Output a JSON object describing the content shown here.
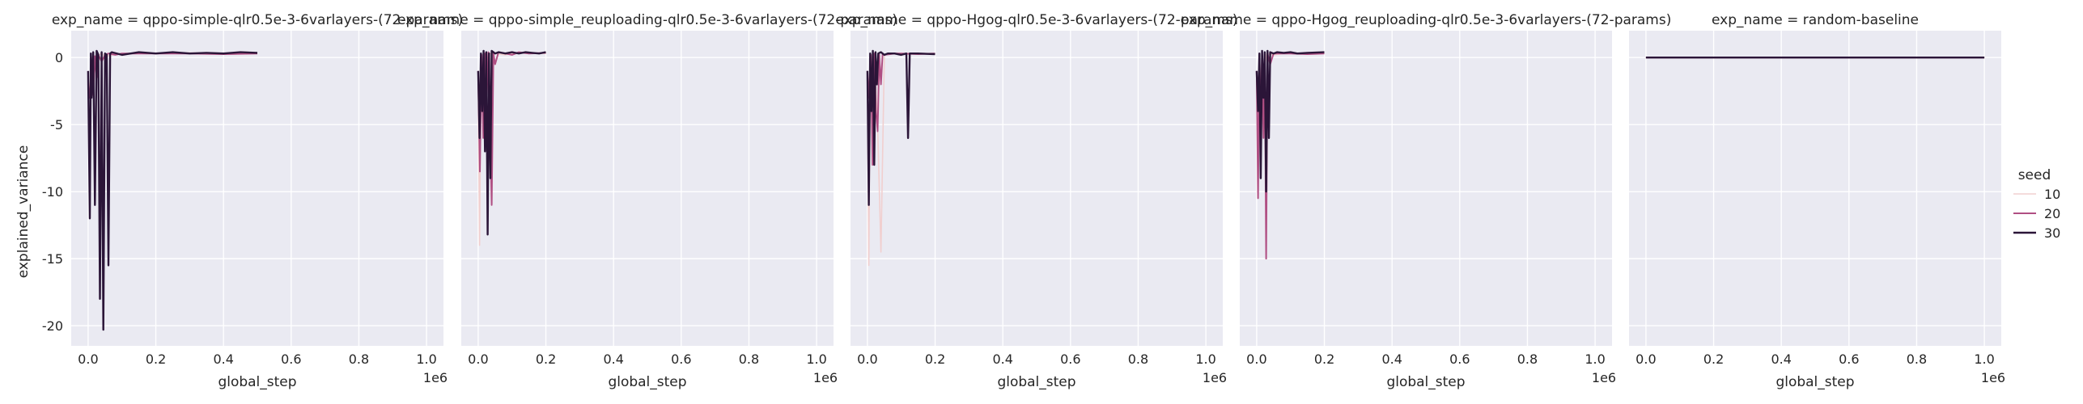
{
  "chart_data": {
    "type": "line",
    "ylabel": "explained_variance",
    "ylim": [
      -21.5,
      2
    ],
    "yticks": [
      0,
      -5,
      -10,
      -15,
      -20
    ],
    "xlim": [
      -0.05,
      1.05
    ],
    "xticks": [
      0.0,
      0.2,
      0.4,
      0.6,
      0.8,
      1.0
    ],
    "x_tick_labels": [
      "0.0",
      "0.2",
      "0.4",
      "0.6",
      "0.8",
      "1.0"
    ],
    "x_offset_label": "1e6",
    "legend": {
      "title": "seed",
      "placement": "right",
      "entries": [
        {
          "label": "10",
          "color": "#f1cfcf"
        },
        {
          "label": "20",
          "color": "#b04f83"
        },
        {
          "label": "30",
          "color": "#2b1538"
        }
      ]
    },
    "panels": [
      {
        "title": "exp_name = qppo-simple-qlr0.5e-3-6varlayers-(72-params)",
        "xlabel": "global_step",
        "series": [
          {
            "seed": "10",
            "x": [
              0.0,
              0.005,
              0.01,
              0.02,
              0.03,
              0.04,
              0.05,
              0.1,
              0.2,
              0.3,
              0.4,
              0.5
            ],
            "y": [
              -1.5,
              -2.5,
              0.0,
              -0.6,
              0.2,
              0.3,
              0.1,
              0.3,
              0.3,
              0.35,
              0.3,
              0.35
            ]
          },
          {
            "seed": "20",
            "x": [
              0.0,
              0.005,
              0.01,
              0.015,
              0.02,
              0.025,
              0.03,
              0.04,
              0.05,
              0.06,
              0.08,
              0.1,
              0.2,
              0.3,
              0.4,
              0.5
            ],
            "y": [
              -2.0,
              -3.0,
              -0.5,
              -2.8,
              0.1,
              -1.5,
              0.2,
              -0.3,
              0.2,
              0.3,
              0.2,
              0.3,
              0.3,
              0.3,
              0.25,
              0.3
            ]
          },
          {
            "seed": "30",
            "x": [
              0.0,
              0.005,
              0.008,
              0.01,
              0.015,
              0.02,
              0.025,
              0.03,
              0.035,
              0.04,
              0.045,
              0.05,
              0.055,
              0.06,
              0.065,
              0.07,
              0.1,
              0.15,
              0.2,
              0.25,
              0.3,
              0.35,
              0.4,
              0.45,
              0.5
            ],
            "y": [
              -1.0,
              -12.0,
              0.3,
              -3.0,
              0.4,
              -11.0,
              0.5,
              0.2,
              -18.0,
              0.4,
              -20.3,
              0.3,
              0.2,
              -15.5,
              0.3,
              0.4,
              0.2,
              0.4,
              0.3,
              0.4,
              0.3,
              0.35,
              0.3,
              0.4,
              0.35
            ]
          }
        ]
      },
      {
        "title": "exp_name = qppo-simple_reuploading-qlr0.5e-3-6varlayers-(72-params)",
        "xlabel": "global_step",
        "series": [
          {
            "seed": "10",
            "x": [
              0.0,
              0.004,
              0.008,
              0.012,
              0.016,
              0.02,
              0.03,
              0.05,
              0.08,
              0.1,
              0.15,
              0.2
            ],
            "y": [
              -2.0,
              -14.0,
              -0.5,
              -3.0,
              0.1,
              -1.0,
              0.3,
              0.3,
              0.2,
              0.3,
              0.35,
              0.3
            ]
          },
          {
            "seed": "20",
            "x": [
              0.0,
              0.005,
              0.01,
              0.015,
              0.02,
              0.025,
              0.03,
              0.04,
              0.045,
              0.05,
              0.06,
              0.08,
              0.1,
              0.12,
              0.15,
              0.2
            ],
            "y": [
              -1.0,
              -8.5,
              0.2,
              -6.0,
              0.3,
              -3.0,
              0.4,
              -11.0,
              0.3,
              -0.5,
              0.4,
              0.3,
              0.2,
              0.4,
              0.3,
              0.35
            ]
          },
          {
            "seed": "30",
            "x": [
              0.0,
              0.004,
              0.008,
              0.012,
              0.016,
              0.02,
              0.024,
              0.028,
              0.032,
              0.036,
              0.04,
              0.05,
              0.06,
              0.08,
              0.1,
              0.12,
              0.14,
              0.16,
              0.18,
              0.2
            ],
            "y": [
              -1.0,
              -6.0,
              0.3,
              -4.0,
              0.5,
              -7.0,
              0.4,
              -13.2,
              0.3,
              -9.0,
              0.5,
              0.3,
              0.4,
              0.3,
              0.4,
              0.3,
              0.4,
              0.35,
              0.3,
              0.4
            ]
          }
        ]
      },
      {
        "title": "exp_name = qppo-Hgog-qlr0.5e-3-6varlayers-(72-params)",
        "xlabel": "global_step",
        "series": [
          {
            "seed": "10",
            "x": [
              0.0,
              0.004,
              0.008,
              0.012,
              0.02,
              0.03,
              0.04,
              0.05,
              0.08,
              0.1,
              0.15,
              0.2
            ],
            "y": [
              -1.0,
              -15.5,
              -0.5,
              -3.0,
              0.1,
              -5.0,
              -14.5,
              0.2,
              0.3,
              0.3,
              0.3,
              0.3
            ]
          },
          {
            "seed": "20",
            "x": [
              0.0,
              0.005,
              0.01,
              0.015,
              0.02,
              0.025,
              0.03,
              0.035,
              0.04,
              0.045,
              0.05,
              0.08,
              0.1,
              0.15,
              0.2
            ],
            "y": [
              -1.0,
              -3.0,
              0.2,
              -8.0,
              0.3,
              -4.0,
              -5.5,
              0.2,
              -2.0,
              0.3,
              0.2,
              0.3,
              0.3,
              0.25,
              0.3
            ]
          },
          {
            "seed": "30",
            "x": [
              0.0,
              0.004,
              0.008,
              0.012,
              0.016,
              0.02,
              0.024,
              0.028,
              0.032,
              0.04,
              0.05,
              0.06,
              0.08,
              0.1,
              0.115,
              0.12,
              0.125,
              0.15,
              0.2
            ],
            "y": [
              -1.0,
              -11.0,
              0.3,
              -4.0,
              0.5,
              -8.0,
              0.4,
              -2.0,
              0.3,
              0.4,
              0.2,
              0.3,
              0.3,
              0.2,
              0.3,
              -6.0,
              0.3,
              0.3,
              0.25
            ]
          }
        ]
      },
      {
        "title": "exp_name = qppo-Hgog_reuploading-qlr0.5e-3-6varlayers-(72-params)",
        "xlabel": "global_step",
        "series": [
          {
            "seed": "10",
            "x": [
              0.0,
              0.004,
              0.008,
              0.012,
              0.016,
              0.02,
              0.03,
              0.05,
              0.08,
              0.1,
              0.15,
              0.2
            ],
            "y": [
              -2.0,
              -6.0,
              -0.5,
              -2.0,
              0.1,
              -1.0,
              0.3,
              0.2,
              0.3,
              0.3,
              0.3,
              0.3
            ]
          },
          {
            "seed": "20",
            "x": [
              0.0,
              0.004,
              0.008,
              0.012,
              0.016,
              0.02,
              0.024,
              0.028,
              0.032,
              0.04,
              0.05,
              0.08,
              0.1,
              0.15,
              0.2
            ],
            "y": [
              -1.0,
              -10.5,
              0.2,
              -4.5,
              0.3,
              -6.0,
              0.3,
              -15.0,
              0.3,
              -0.5,
              0.3,
              0.3,
              0.3,
              0.25,
              0.3
            ]
          },
          {
            "seed": "30",
            "x": [
              0.0,
              0.004,
              0.008,
              0.012,
              0.016,
              0.02,
              0.024,
              0.028,
              0.032,
              0.036,
              0.04,
              0.05,
              0.06,
              0.08,
              0.1,
              0.12,
              0.15,
              0.2
            ],
            "y": [
              -1.0,
              -4.0,
              0.3,
              -9.0,
              0.5,
              -3.0,
              0.4,
              -10.0,
              0.5,
              -6.0,
              0.4,
              0.3,
              0.4,
              0.35,
              0.4,
              0.3,
              0.35,
              0.4
            ]
          }
        ]
      },
      {
        "title": "exp_name = random-baseline",
        "xlabel": "global_step",
        "series": [
          {
            "seed": "10",
            "x": [
              0.0,
              1.0
            ],
            "y": [
              0.0,
              0.0
            ]
          },
          {
            "seed": "20",
            "x": [
              0.0,
              1.0
            ],
            "y": [
              0.0,
              0.0
            ]
          },
          {
            "seed": "30",
            "x": [
              0.0,
              1.0
            ],
            "y": [
              0.0,
              0.0
            ]
          }
        ]
      }
    ]
  }
}
